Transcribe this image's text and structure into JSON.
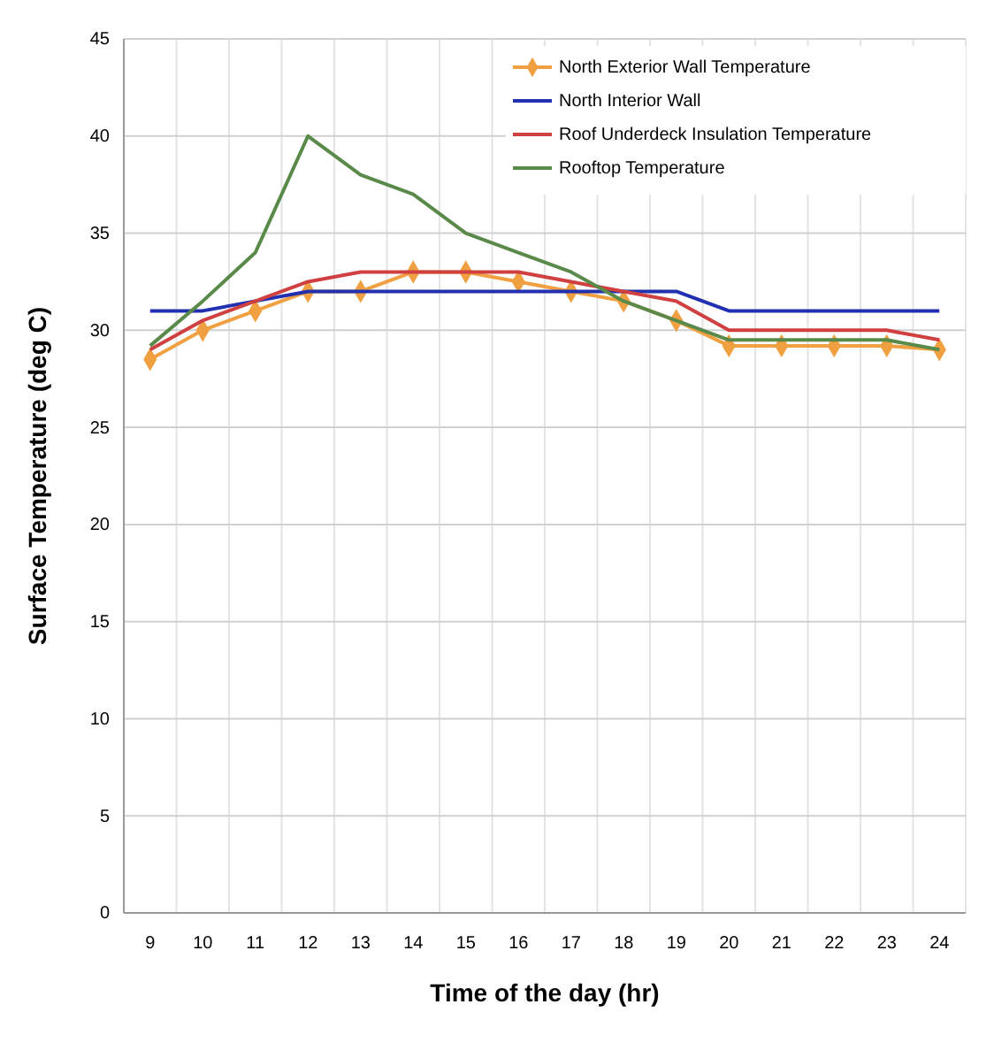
{
  "chart_data": {
    "type": "line",
    "xlabel": "Time of the day (hr)",
    "ylabel": "Surface Temperature (deg C)",
    "categories": [
      "9",
      "10",
      "11",
      "12",
      "13",
      "14",
      "15",
      "16",
      "17",
      "18",
      "19",
      "20",
      "21",
      "22",
      "23",
      "24"
    ],
    "ylim": [
      0,
      45
    ],
    "yticks": [
      0,
      5,
      10,
      15,
      20,
      25,
      30,
      35,
      40,
      45
    ],
    "grid": true,
    "legend": "top right",
    "series": [
      {
        "name": "North Exterior Wall Temperature",
        "color": "#f0a040",
        "marker": "diamond",
        "values": [
          28.5,
          30,
          31,
          32,
          32,
          33,
          33,
          32.5,
          32,
          31.5,
          30.5,
          29.2,
          29.2,
          29.2,
          29.2,
          29
        ]
      },
      {
        "name": "North Interior Wall",
        "color": "#2030b0",
        "marker": "none",
        "values": [
          31,
          31,
          31.5,
          32,
          32,
          32,
          32,
          32,
          32,
          32,
          32,
          31,
          31,
          31,
          31,
          31
        ]
      },
      {
        "name": "Roof Underdeck Insulation Temperature",
        "color": "#d04040",
        "marker": "none",
        "values": [
          29,
          30.5,
          31.5,
          32.5,
          33,
          33,
          33,
          33,
          32.5,
          32,
          31.5,
          30,
          30,
          30,
          30,
          29.5
        ]
      },
      {
        "name": "Rooftop Temperature",
        "color": "#5a8a4a",
        "marker": "none",
        "values": [
          29.2,
          31.5,
          34,
          40,
          38,
          37,
          35,
          34,
          33,
          31.5,
          30.5,
          29.5,
          29.5,
          29.5,
          29.5,
          29
        ]
      }
    ]
  }
}
